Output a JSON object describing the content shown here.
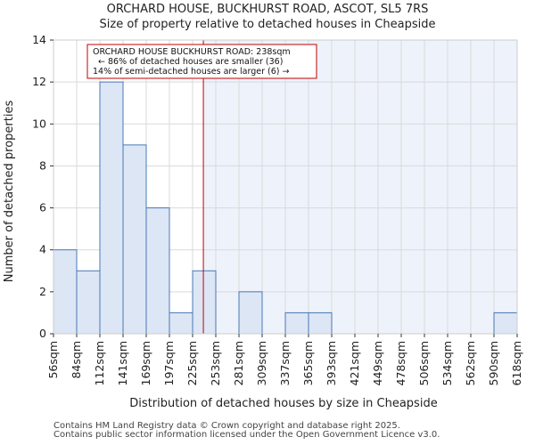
{
  "chart_data": {
    "type": "bar",
    "title": "ORCHARD HOUSE, BUCKHURST ROAD, ASCOT, SL5 7RS",
    "subtitle": "Size of property relative to detached houses in Cheapside",
    "xlabel": "Distribution of detached houses by size in Cheapside",
    "ylabel": "Number of detached properties",
    "bin_edges": [
      56,
      84,
      112,
      141,
      169,
      197,
      225,
      253,
      281,
      309,
      337,
      365,
      393,
      421,
      449,
      478,
      506,
      534,
      562,
      590,
      618
    ],
    "x_tick_labels": [
      "56sqm",
      "84sqm",
      "112sqm",
      "141sqm",
      "169sqm",
      "197sqm",
      "225sqm",
      "253sqm",
      "281sqm",
      "309sqm",
      "337sqm",
      "365sqm",
      "393sqm",
      "421sqm",
      "449sqm",
      "478sqm",
      "506sqm",
      "534sqm",
      "562sqm",
      "590sqm",
      "618sqm"
    ],
    "values": [
      4,
      3,
      12,
      9,
      6,
      1,
      3,
      0,
      2,
      0,
      1,
      1,
      0,
      0,
      0,
      0,
      0,
      0,
      0,
      1
    ],
    "ylim": [
      0,
      14
    ],
    "y_ticks": [
      0,
      2,
      4,
      6,
      8,
      10,
      12,
      14
    ],
    "grid": true,
    "property_marker": {
      "value": 238,
      "label": "ORCHARD HOUSE BUCKHURST ROAD: 238sqm"
    },
    "annotation_lines": [
      "ORCHARD HOUSE BUCKHURST ROAD: 238sqm",
      "← 86% of detached houses are smaller (36)",
      "14% of semi-detached houses are larger (6) →"
    ],
    "colors": {
      "bar_fill": "#dce6f5",
      "bar_stroke": "#4a78b5",
      "marker": "#c00000",
      "shade": "#eef2fa",
      "grid": "#d9d9d9"
    }
  },
  "footer": {
    "line1": "Contains HM Land Registry data © Crown copyright and database right 2025.",
    "line2": "Contains public sector information licensed under the Open Government Licence v3.0."
  }
}
